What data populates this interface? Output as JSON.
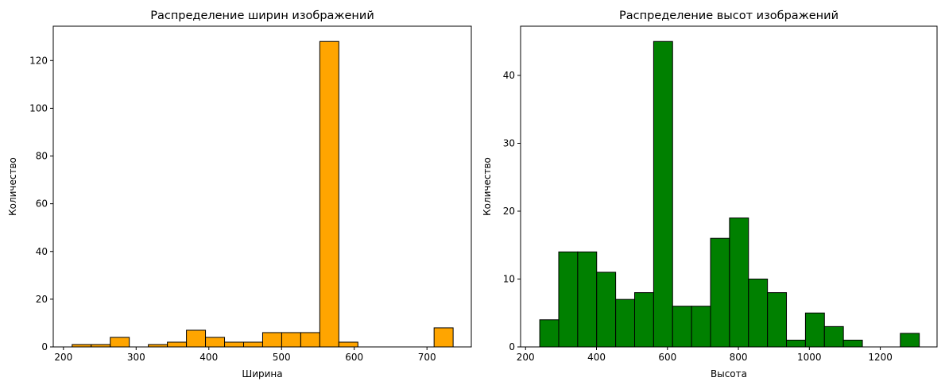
{
  "chart_data": [
    {
      "type": "bar",
      "title": "Распределение ширин изображений",
      "xlabel": "Ширина",
      "ylabel": "Количество",
      "xlim": [
        186,
        761
      ],
      "ylim": [
        0,
        134.4
      ],
      "xticks": [
        200,
        300,
        400,
        500,
        600,
        700
      ],
      "yticks": [
        0,
        20,
        40,
        60,
        80,
        100,
        120
      ],
      "bar_color": "#ffa500",
      "edge_color": "#000000",
      "bin_edges": [
        212,
        238.2,
        264.4,
        290.6,
        316.8,
        343.0,
        369.2,
        395.4,
        421.6,
        447.8,
        474.0,
        500.2,
        526.4,
        552.6,
        578.8,
        605.0,
        631.2,
        657.4,
        683.6,
        709.8,
        736
      ],
      "values": [
        1,
        1,
        4,
        0,
        1,
        2,
        7,
        4,
        2,
        2,
        6,
        6,
        6,
        128,
        2,
        0,
        0,
        0,
        0,
        8
      ]
    },
    {
      "type": "bar",
      "title": "Распределение высот изображений",
      "xlabel": "Высота",
      "ylabel": "Количество",
      "xlim": [
        186,
        1360
      ],
      "ylim": [
        0,
        47.25
      ],
      "xticks": [
        200,
        400,
        600,
        800,
        1000,
        1200
      ],
      "yticks": [
        0,
        10,
        20,
        30,
        40
      ],
      "bar_color": "#008000",
      "edge_color": "#000000",
      "bin_edges": [
        240,
        293.5,
        347.0,
        400.5,
        454.0,
        507.5,
        561.0,
        614.5,
        668.0,
        721.5,
        775.0,
        828.5,
        882.0,
        935.5,
        989.0,
        1042.5,
        1096.0,
        1149.5,
        1203.0,
        1256.5,
        1310
      ],
      "values": [
        4,
        14,
        14,
        11,
        7,
        8,
        45,
        6,
        6,
        16,
        19,
        10,
        8,
        1,
        5,
        3,
        1,
        0,
        0,
        2
      ]
    }
  ]
}
